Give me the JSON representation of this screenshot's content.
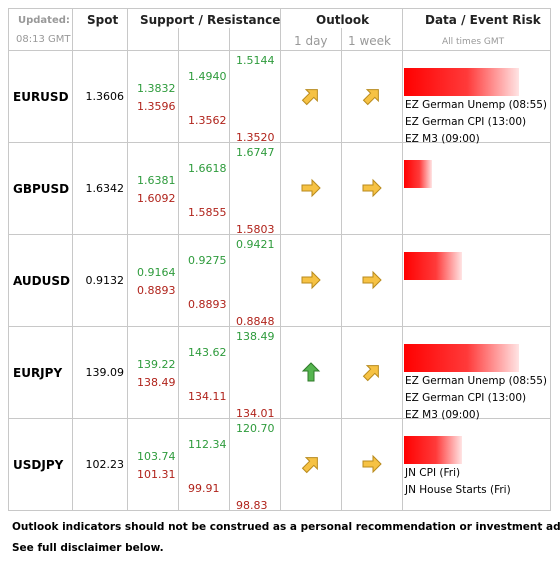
{
  "header": {
    "updated": "Updated:",
    "time": "08:13 GMT",
    "spot": "Spot",
    "support_resistance": "Support / Resistance",
    "outlook": "Outlook",
    "day": "1 day",
    "week": "1 week",
    "event_risk": "Data / Event Risk",
    "times": "All times GMT"
  },
  "rows": [
    {
      "pair": "EURUSD",
      "spot": "1.3606",
      "sr": [
        [
          "1.3832",
          "1.3596"
        ],
        [
          "1.4940",
          "1.3562"
        ],
        [
          "1.5144",
          "1.3520"
        ]
      ],
      "events": [
        "EZ German Unemp (08:55)",
        "EZ German CPI (13:00)",
        "EZ M3 (09:00)"
      ]
    },
    {
      "pair": "GBPUSD",
      "spot": "1.6342",
      "sr": [
        [
          "1.6381",
          "1.6092"
        ],
        [
          "1.6618",
          "1.5855"
        ],
        [
          "1.6747",
          "1.5803"
        ]
      ],
      "events": []
    },
    {
      "pair": "AUDUSD",
      "spot": "0.9132",
      "sr": [
        [
          "0.9164",
          "0.8893"
        ],
        [
          "0.9275",
          "0.8893"
        ],
        [
          "0.9421",
          "0.8848"
        ]
      ],
      "events": []
    },
    {
      "pair": "EURJPY",
      "spot": "139.09",
      "sr": [
        [
          "139.22",
          "138.49"
        ],
        [
          "143.62",
          "134.11"
        ],
        [
          "138.49",
          "134.01"
        ]
      ],
      "events": [
        "EZ German Unemp (08:55)",
        "EZ German CPI (13:00)",
        "EZ M3 (09:00)"
      ]
    },
    {
      "pair": "USDJPY",
      "spot": "102.23",
      "sr": [
        [
          "103.74",
          "101.31"
        ],
        [
          "112.34",
          "99.91"
        ],
        [
          "120.70",
          "98.83"
        ]
      ],
      "events": [
        "JN CPI (Fri)",
        "JN House Starts (Fri)"
      ]
    }
  ],
  "footer": [
    "Outlook indicators should not be construed as a personal recommendation or investment advice.",
    "See full disclaimer below."
  ]
}
